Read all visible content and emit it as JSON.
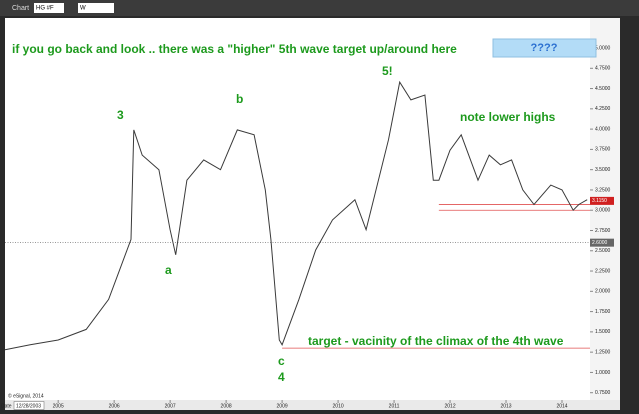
{
  "window": {
    "title": "Chart",
    "symbol": "HG #F",
    "interval": "W"
  },
  "chart_data": {
    "type": "line",
    "color": "#3a3a3a",
    "x": [
      2004.05,
      2004.5,
      2005.0,
      2005.5,
      2005.9,
      2006.1,
      2006.3,
      2006.35,
      2006.5,
      2006.8,
      2007.0,
      2007.1,
      2007.3,
      2007.6,
      2007.9,
      2008.2,
      2008.5,
      2008.7,
      2008.8,
      2008.95,
      2009.0,
      2009.3,
      2009.6,
      2009.9,
      2010.3,
      2010.5,
      2010.9,
      2011.1,
      2011.3,
      2011.55,
      2011.7,
      2011.8,
      2012.0,
      2012.2,
      2012.5,
      2012.7,
      2012.9,
      2013.1,
      2013.3,
      2013.5,
      2013.8,
      2014.0,
      2014.2,
      2014.3,
      2014.45
    ],
    "values": [
      1.28,
      1.34,
      1.4,
      1.53,
      1.9,
      2.27,
      2.64,
      3.99,
      3.68,
      3.5,
      2.76,
      2.45,
      3.37,
      3.62,
      3.5,
      3.99,
      3.93,
      3.25,
      2.64,
      1.4,
      1.34,
      1.9,
      2.51,
      2.88,
      3.13,
      2.76,
      3.87,
      4.58,
      4.36,
      4.42,
      3.37,
      3.37,
      3.74,
      3.93,
      3.37,
      3.68,
      3.56,
      3.62,
      3.25,
      3.07,
      3.31,
      3.25,
      3.0,
      3.07,
      3.13
    ],
    "xlim": [
      2004.05,
      2014.5
    ],
    "xticks": [
      2005,
      2006,
      2007,
      2008,
      2009,
      2010,
      2011,
      2012,
      2013,
      2014
    ],
    "ylim": [
      0.66,
      5.37
    ],
    "yticks": [
      {
        "value": 5,
        "label": "5.0000"
      },
      {
        "value": 4.75,
        "label": "4.7500"
      },
      {
        "value": 4.5,
        "label": "4.5000"
      },
      {
        "value": 4.25,
        "label": "4.2500"
      },
      {
        "value": 4,
        "label": "4.0000"
      },
      {
        "value": 3.75,
        "label": "3.7500"
      },
      {
        "value": 3.5,
        "label": "3.5000"
      },
      {
        "value": 3.25,
        "label": "3.2500"
      },
      {
        "value": 3,
        "label": "3.0000"
      },
      {
        "value": 2.75,
        "label": "2.7500"
      },
      {
        "value": 2.5,
        "label": "2.5000"
      },
      {
        "value": 2.25,
        "label": "2.2500"
      },
      {
        "value": 2,
        "label": "2.0000"
      },
      {
        "value": 1.75,
        "label": "1.7500"
      },
      {
        "value": 1.5,
        "label": "1.5000"
      },
      {
        "value": 1.25,
        "label": "1.2500"
      },
      {
        "value": 1,
        "label": "1.0000"
      },
      {
        "value": 0.75,
        "label": "0.7500"
      }
    ],
    "reference_lines": [
      {
        "value": 3.07,
        "from": 2011.8,
        "color": "#e05050"
      },
      {
        "value": 3.0,
        "from": 2011.8,
        "color": "#e05050"
      },
      {
        "value": 1.3,
        "from": 2009.0,
        "color": "#e05050"
      }
    ],
    "dotted_line": 2.6,
    "price_labels": [
      {
        "value": 3.115,
        "label": "3.1150",
        "color": "#d02020"
      },
      {
        "value": 2.6,
        "label": "2.6000",
        "color": "#666666"
      }
    ],
    "date_label": "12/28/2003",
    "date_caption": "Date",
    "copyright": "© eSignal, 2014",
    "annotations": [
      "if you go back and look .. there was a \"higher\" 5th wave target up/around here",
      "????",
      "3",
      "b",
      "5!",
      "a",
      "c",
      "4",
      "note lower highs",
      "target - vacinity of the climax of the 4th wave"
    ]
  }
}
